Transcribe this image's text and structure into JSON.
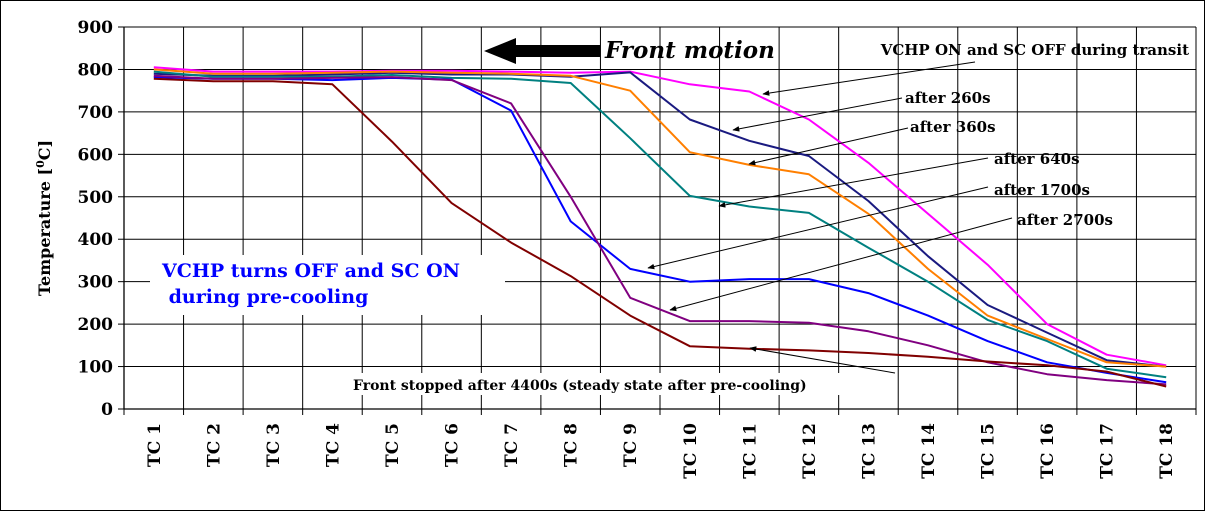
{
  "chart_data": {
    "type": "line",
    "title": "",
    "xlabel": "",
    "ylabel_main": "Temperature [",
    "ylabel_sup": "0",
    "ylabel_end": "C]",
    "ylim": [
      0,
      900
    ],
    "yticks": [
      0,
      100,
      200,
      300,
      400,
      500,
      600,
      700,
      800,
      900
    ],
    "grid": true,
    "legend": "none",
    "categories": [
      "TC 1",
      "TC 2",
      "TC 3",
      "TC 4",
      "TC 5",
      "TC 6",
      "TC 7",
      "TC 8",
      "TC 9",
      "TC 10",
      "TC 11",
      "TC 12",
      "TC 13",
      "TC 14",
      "TC 15",
      "TC 16",
      "TC 17",
      "TC 18"
    ],
    "series": [
      {
        "color": "#ff00ff",
        "values": [
          805,
          795,
          795,
          795,
          797,
          797,
          795,
          792,
          795,
          765,
          748,
          682,
          580,
          460,
          340,
          200,
          128,
          103
        ]
      },
      {
        "color": "#1a1a80",
        "values": [
          790,
          785,
          785,
          788,
          792,
          788,
          788,
          783,
          793,
          682,
          632,
          596,
          490,
          360,
          245,
          180,
          115,
          100
        ]
      },
      {
        "color": "#ff7f00",
        "values": [
          800,
          790,
          790,
          792,
          795,
          792,
          790,
          785,
          750,
          605,
          575,
          553,
          460,
          330,
          220,
          165,
          110,
          100
        ]
      },
      {
        "color": "#008080",
        "values": [
          795,
          783,
          783,
          783,
          787,
          780,
          778,
          768,
          638,
          502,
          477,
          462,
          380,
          300,
          210,
          160,
          95,
          75
        ]
      },
      {
        "color": "#0000ff",
        "values": [
          782,
          778,
          778,
          775,
          780,
          776,
          703,
          442,
          330,
          300,
          306,
          306,
          273,
          220,
          160,
          110,
          85,
          63
        ]
      },
      {
        "color": "#800080",
        "values": [
          785,
          778,
          778,
          780,
          782,
          775,
          720,
          500,
          262,
          207,
          207,
          203,
          183,
          150,
          110,
          82,
          68,
          58
        ]
      },
      {
        "color": "#800000",
        "values": [
          778,
          772,
          772,
          765,
          630,
          485,
          392,
          313,
          220,
          148,
          142,
          138,
          132,
          123,
          112,
          103,
          88,
          53
        ]
      }
    ],
    "annotations": {
      "front_motion": "Front motion",
      "transit": "VCHP ON and SC OFF during transit",
      "after_260": "after 260s",
      "after_360": "after 360s",
      "after_640": "after 640s",
      "after_1700": "after 1700s",
      "after_2700": "after 2700s",
      "precool_line1": "VCHP turns OFF and SC ON",
      "precool_line2": " during pre-cooling",
      "steady": "Front stopped after 4400s (steady state after pre-cooling)"
    }
  }
}
